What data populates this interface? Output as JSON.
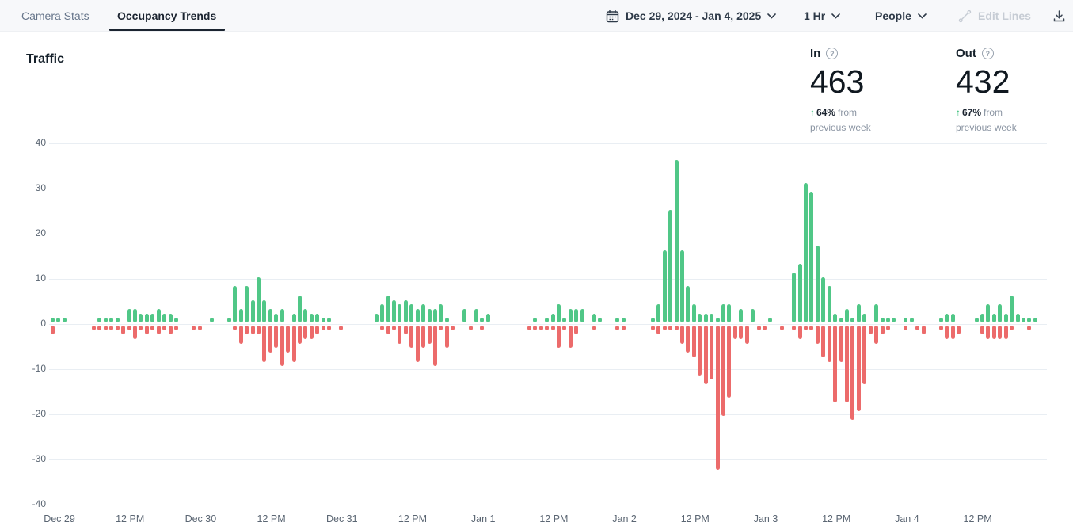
{
  "topbar": {
    "tabs": [
      {
        "label": "Camera Stats",
        "active": false
      },
      {
        "label": "Occupancy Trends",
        "active": true
      }
    ],
    "date_range": "Dec 29, 2024 - Jan 4, 2025",
    "interval": "1 Hr",
    "entity": "People",
    "edit_lines_label": "Edit Lines"
  },
  "icons": {
    "help_glyph": "?",
    "up_arrow": "↑"
  },
  "stats": {
    "title": "Traffic",
    "in": {
      "label": "In",
      "value": "463",
      "delta": "64%",
      "delta_suffix": "from previous week"
    },
    "out": {
      "label": "Out",
      "value": "432",
      "delta": "67%",
      "delta_suffix": "from previous week"
    }
  },
  "colors": {
    "in_green": "#50c787",
    "out_red": "#ec6b6b",
    "delta_green": "#27b96e",
    "dark_text": "#1b2430",
    "muted_text": "#8a94a2",
    "gridline": "#e9eef3",
    "topbar_bg": "#f7f8fa"
  },
  "chart_data": {
    "type": "bar",
    "title": "Traffic",
    "interval": "1 Hr",
    "x_tick_labels": [
      "Dec 29",
      "12 PM",
      "Dec 30",
      "12 PM",
      "Dec 31",
      "12 PM",
      "Jan 1",
      "12 PM",
      "Jan 2",
      "12 PM",
      "Jan 3",
      "12 PM",
      "Jan 4",
      "12 PM"
    ],
    "y_ticks": [
      40,
      30,
      20,
      10,
      0,
      -10,
      -20,
      -30,
      -40
    ],
    "ylim": [
      -40,
      40
    ],
    "legend_position": "none",
    "grid": true,
    "note": "hourly values; In plotted upward (green), Out plotted downward (red)",
    "series": [
      {
        "name": "In",
        "color": "#50c787",
        "direction": "up",
        "values": [
          1,
          1,
          1,
          0,
          0,
          0,
          0,
          0,
          1,
          1,
          1,
          1,
          0,
          3,
          3,
          2,
          2,
          2,
          3,
          2,
          2,
          1,
          0,
          0,
          0,
          0,
          0,
          1,
          0,
          0,
          1,
          8,
          3,
          8,
          5,
          10,
          5,
          3,
          2,
          3,
          0,
          2,
          6,
          3,
          2,
          2,
          1,
          1,
          0,
          0,
          0,
          0,
          0,
          0,
          0,
          2,
          4,
          6,
          5,
          4,
          5,
          4,
          3,
          4,
          3,
          3,
          4,
          1,
          0,
          0,
          3,
          0,
          3,
          1,
          2,
          0,
          0,
          0,
          0,
          0,
          0,
          0,
          1,
          0,
          1,
          2,
          4,
          1,
          3,
          3,
          3,
          0,
          2,
          1,
          0,
          0,
          1,
          1,
          0,
          0,
          0,
          0,
          1,
          4,
          16,
          25,
          36,
          16,
          8,
          4,
          2,
          2,
          2,
          1,
          4,
          4,
          0,
          3,
          0,
          3,
          0,
          0,
          1,
          0,
          0,
          0,
          11,
          13,
          31,
          29,
          17,
          10,
          8,
          2,
          1,
          3,
          1,
          4,
          2,
          0,
          4,
          1,
          1,
          1,
          0,
          1,
          1,
          0,
          0,
          0,
          0,
          1,
          2,
          2,
          0,
          0,
          0,
          1,
          2,
          4,
          2,
          4,
          2,
          6,
          2,
          1,
          1,
          1
        ]
      },
      {
        "name": "Out",
        "color": "#ec6b6b",
        "direction": "down",
        "values": [
          2,
          0,
          0,
          0,
          0,
          0,
          0,
          1,
          1,
          1,
          1,
          1,
          2,
          1,
          3,
          1,
          2,
          1,
          2,
          1,
          2,
          1,
          0,
          0,
          1,
          1,
          0,
          0,
          0,
          0,
          0,
          1,
          4,
          2,
          2,
          2,
          8,
          6,
          5,
          9,
          6,
          8,
          4,
          3,
          3,
          2,
          1,
          1,
          0,
          1,
          0,
          0,
          0,
          0,
          0,
          0,
          1,
          2,
          1,
          4,
          2,
          5,
          8,
          5,
          4,
          9,
          1,
          5,
          1,
          0,
          0,
          1,
          0,
          1,
          0,
          0,
          0,
          0,
          0,
          0,
          0,
          1,
          1,
          1,
          1,
          1,
          5,
          1,
          5,
          2,
          0,
          0,
          1,
          0,
          0,
          0,
          1,
          1,
          0,
          0,
          0,
          0,
          1,
          2,
          1,
          1,
          1,
          4,
          6,
          7,
          11,
          13,
          12,
          32,
          20,
          16,
          3,
          3,
          4,
          0,
          1,
          1,
          0,
          0,
          1,
          0,
          1,
          3,
          1,
          1,
          4,
          7,
          8,
          17,
          8,
          17,
          21,
          19,
          13,
          2,
          4,
          2,
          1,
          0,
          0,
          1,
          0,
          1,
          2,
          0,
          0,
          1,
          3,
          3,
          2,
          0,
          0,
          0,
          2,
          3,
          3,
          3,
          3,
          1,
          0,
          0,
          1,
          0
        ]
      }
    ]
  }
}
